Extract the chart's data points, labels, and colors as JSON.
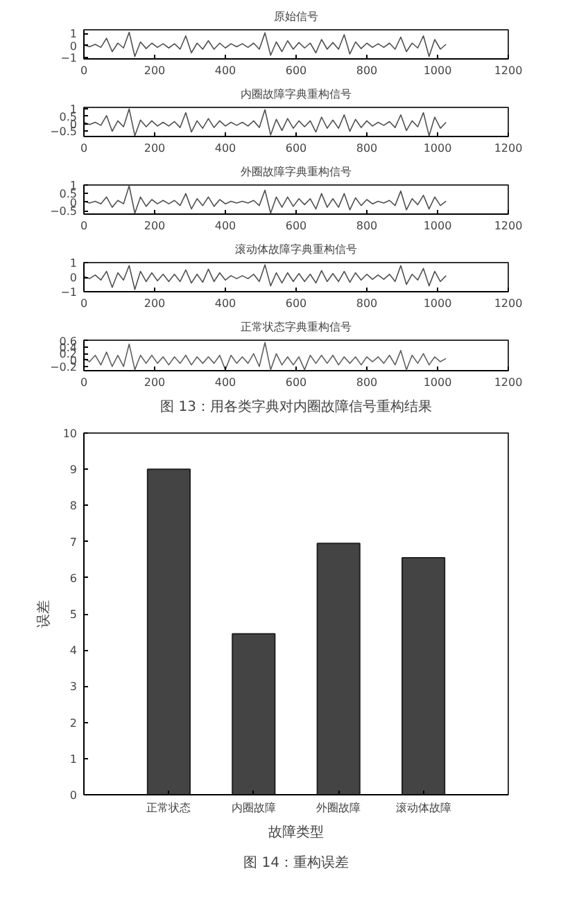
{
  "chart_data": [
    {
      "type": "line",
      "title": "原始信号",
      "xlim": [
        0,
        1200
      ],
      "xticks": [
        0,
        200,
        400,
        600,
        800,
        1000,
        1200
      ],
      "ylim": [
        -1.1,
        1.3
      ],
      "yticks": [
        -1,
        0,
        1
      ],
      "grid": false,
      "x": [
        0,
        16,
        32,
        48,
        64,
        80,
        96,
        112,
        128,
        144,
        160,
        176,
        192,
        208,
        224,
        240,
        256,
        272,
        288,
        304,
        320,
        336,
        352,
        368,
        384,
        400,
        416,
        432,
        448,
        464,
        480,
        496,
        512,
        528,
        544,
        560,
        576,
        592,
        608,
        624,
        640,
        656,
        672,
        688,
        704,
        720,
        736,
        752,
        768,
        784,
        800,
        816,
        832,
        848,
        864,
        880,
        896,
        912,
        928,
        944,
        960,
        976,
        992,
        1008,
        1024
      ],
      "series": [
        {
          "color": "#505050",
          "values": [
            0.05,
            -0.1,
            0.1,
            -0.15,
            0.6,
            -0.5,
            0.2,
            -0.2,
            1.1,
            -0.9,
            0.3,
            -0.25,
            0.2,
            -0.15,
            0.15,
            -0.2,
            0.15,
            -0.3,
            0.8,
            -0.6,
            0.2,
            -0.3,
            0.4,
            -0.3,
            0.2,
            -0.2,
            0.15,
            -0.1,
            0.15,
            -0.15,
            0.2,
            -0.3,
            1.05,
            -0.8,
            0.3,
            -0.5,
            0.4,
            -0.3,
            0.25,
            -0.2,
            0.2,
            -0.6,
            0.5,
            -0.3,
            0.25,
            -0.3,
            0.9,
            -0.7,
            0.3,
            -0.25,
            0.2,
            -0.15,
            0.15,
            -0.15,
            0.2,
            -0.3,
            0.7,
            -0.5,
            0.2,
            -0.2,
            0.8,
            -0.9,
            0.5,
            -0.3,
            0.1
          ]
        }
      ]
    },
    {
      "type": "line",
      "title": "内圈故障字典重构信号",
      "xlim": [
        0,
        1200
      ],
      "xticks": [
        0,
        200,
        400,
        600,
        800,
        1000,
        1200
      ],
      "ylim": [
        -0.85,
        1.1
      ],
      "yticks": [
        -0.5,
        0,
        0.5,
        1
      ],
      "grid": false,
      "x": [
        0,
        16,
        32,
        48,
        64,
        80,
        96,
        112,
        128,
        144,
        160,
        176,
        192,
        208,
        224,
        240,
        256,
        272,
        288,
        304,
        320,
        336,
        352,
        368,
        384,
        400,
        416,
        432,
        448,
        464,
        480,
        496,
        512,
        528,
        544,
        560,
        576,
        592,
        608,
        624,
        640,
        656,
        672,
        688,
        704,
        720,
        736,
        752,
        768,
        784,
        800,
        816,
        832,
        848,
        864,
        880,
        896,
        912,
        928,
        944,
        960,
        976,
        992,
        1008,
        1024
      ],
      "series": [
        {
          "color": "#505050",
          "values": [
            0.1,
            -0.05,
            0.1,
            -0.1,
            0.55,
            -0.5,
            0.2,
            -0.2,
            1.0,
            -0.8,
            0.25,
            -0.2,
            0.2,
            -0.15,
            0.1,
            -0.15,
            0.15,
            -0.25,
            0.75,
            -0.55,
            0.2,
            -0.3,
            0.35,
            -0.25,
            0.2,
            -0.15,
            0.1,
            -0.1,
            0.1,
            -0.15,
            0.2,
            -0.25,
            0.95,
            -0.75,
            0.3,
            -0.45,
            0.35,
            -0.3,
            0.2,
            -0.2,
            0.2,
            -0.55,
            0.45,
            -0.3,
            0.25,
            -0.3,
            0.6,
            -0.5,
            0.3,
            -0.25,
            0.2,
            -0.15,
            0.1,
            -0.1,
            0.15,
            -0.25,
            0.6,
            -0.45,
            0.2,
            -0.2,
            0.75,
            -0.8,
            0.45,
            -0.3,
            0.1
          ]
        }
      ]
    },
    {
      "type": "line",
      "title": "外圈故障字典重构信号",
      "xlim": [
        0,
        1200
      ],
      "xticks": [
        0,
        200,
        400,
        600,
        800,
        1000,
        1200
      ],
      "ylim": [
        -0.7,
        1.0
      ],
      "yticks": [
        -0.5,
        0,
        0.5,
        1
      ],
      "grid": false,
      "x": [
        0,
        16,
        32,
        48,
        64,
        80,
        96,
        112,
        128,
        144,
        160,
        176,
        192,
        208,
        224,
        240,
        256,
        272,
        288,
        304,
        320,
        336,
        352,
        368,
        384,
        400,
        416,
        432,
        448,
        464,
        480,
        496,
        512,
        528,
        544,
        560,
        576,
        592,
        608,
        624,
        640,
        656,
        672,
        688,
        704,
        720,
        736,
        752,
        768,
        784,
        800,
        816,
        832,
        848,
        864,
        880,
        896,
        912,
        928,
        944,
        960,
        976,
        992,
        1008,
        1024
      ],
      "series": [
        {
          "color": "#505050",
          "values": [
            0.05,
            -0.05,
            0.05,
            -0.1,
            0.3,
            -0.3,
            0.1,
            -0.1,
            0.95,
            -0.65,
            0.3,
            -0.25,
            0.15,
            -0.1,
            0.1,
            -0.1,
            0.1,
            -0.2,
            0.5,
            -0.4,
            0.2,
            -0.2,
            0.3,
            -0.25,
            0.15,
            -0.1,
            0.05,
            -0.05,
            0.05,
            -0.05,
            0.1,
            -0.2,
            0.7,
            -0.65,
            0.3,
            -0.3,
            0.3,
            -0.25,
            0.2,
            -0.15,
            0.2,
            -0.4,
            0.5,
            -0.3,
            0.2,
            -0.3,
            0.5,
            -0.45,
            0.25,
            -0.2,
            0.15,
            -0.1,
            0.05,
            -0.05,
            0.1,
            -0.2,
            0.65,
            -0.45,
            0.2,
            -0.15,
            0.4,
            -0.4,
            0.3,
            -0.2,
            0.05
          ]
        }
      ]
    },
    {
      "type": "line",
      "title": "滚动体故障字典重构信号",
      "xlim": [
        0,
        1200
      ],
      "xticks": [
        0,
        200,
        400,
        600,
        800,
        1000,
        1200
      ],
      "ylim": [
        -1,
        1
      ],
      "yticks": [
        -1,
        0,
        1
      ],
      "grid": false,
      "x": [
        0,
        16,
        32,
        48,
        64,
        80,
        96,
        112,
        128,
        144,
        160,
        176,
        192,
        208,
        224,
        240,
        256,
        272,
        288,
        304,
        320,
        336,
        352,
        368,
        384,
        400,
        416,
        432,
        448,
        464,
        480,
        496,
        512,
        528,
        544,
        560,
        576,
        592,
        608,
        624,
        640,
        656,
        672,
        688,
        704,
        720,
        736,
        752,
        768,
        784,
        800,
        816,
        832,
        848,
        864,
        880,
        896,
        912,
        928,
        944,
        960,
        976,
        992,
        1008,
        1024
      ],
      "series": [
        {
          "color": "#505050",
          "values": [
            0.05,
            -0.1,
            0.15,
            -0.2,
            0.4,
            -0.7,
            0.3,
            -0.2,
            0.8,
            -0.85,
            0.4,
            -0.3,
            0.3,
            -0.25,
            0.2,
            -0.3,
            0.2,
            -0.3,
            0.5,
            -0.4,
            0.2,
            -0.35,
            0.55,
            -0.3,
            0.3,
            -0.2,
            0.1,
            -0.1,
            0.1,
            -0.1,
            0.2,
            -0.3,
            0.85,
            -0.6,
            0.3,
            -0.4,
            0.3,
            -0.3,
            0.25,
            -0.3,
            0.2,
            -0.4,
            0.45,
            -0.3,
            0.25,
            -0.3,
            0.4,
            -0.35,
            0.3,
            -0.2,
            0.2,
            -0.15,
            0.15,
            -0.15,
            0.2,
            -0.3,
            0.8,
            -0.5,
            0.2,
            -0.2,
            0.6,
            -0.6,
            0.4,
            -0.3,
            0.1
          ]
        }
      ]
    },
    {
      "type": "line",
      "title": "正常状态字典重构信号",
      "xlim": [
        0,
        1200
      ],
      "xticks": [
        0,
        200,
        400,
        600,
        800,
        1000,
        1200
      ],
      "ylim": [
        -0.33,
        0.62
      ],
      "yticks": [
        -0.2,
        0,
        0.2,
        0.4,
        0.6
      ],
      "grid": false,
      "annotations": [
        "图 13：用各类字典对内圈故障信号重构结果"
      ],
      "x": [
        0,
        16,
        32,
        48,
        64,
        80,
        96,
        112,
        128,
        144,
        160,
        176,
        192,
        208,
        224,
        240,
        256,
        272,
        288,
        304,
        320,
        336,
        352,
        368,
        384,
        400,
        416,
        432,
        448,
        464,
        480,
        496,
        512,
        528,
        544,
        560,
        576,
        592,
        608,
        624,
        640,
        656,
        672,
        688,
        704,
        720,
        736,
        752,
        768,
        784,
        800,
        816,
        832,
        848,
        864,
        880,
        896,
        912,
        928,
        944,
        960,
        976,
        992,
        1008,
        1024
      ],
      "series": [
        {
          "color": "#606060",
          "values": [
            0.05,
            -0.05,
            0.15,
            -0.15,
            0.25,
            -0.2,
            0.15,
            -0.2,
            0.5,
            -0.3,
            0.15,
            -0.1,
            0.15,
            -0.1,
            0.1,
            -0.15,
            0.1,
            -0.1,
            0.15,
            -0.15,
            0.1,
            -0.1,
            0.1,
            -0.1,
            0.15,
            -0.3,
            0.15,
            -0.1,
            0.1,
            -0.1,
            0.2,
            -0.2,
            0.55,
            -0.3,
            0.2,
            -0.15,
            0.1,
            -0.15,
            0.1,
            -0.3,
            0.15,
            -0.1,
            0.15,
            -0.1,
            0.15,
            -0.15,
            0.1,
            -0.1,
            0.1,
            -0.15,
            0.1,
            -0.05,
            0.1,
            -0.1,
            0.15,
            -0.15,
            0.3,
            -0.3,
            0.15,
            -0.1,
            0.2,
            -0.15,
            0.1,
            -0.05,
            0.05
          ]
        }
      ]
    },
    {
      "type": "bar",
      "categories": [
        "正常状态",
        "内圈故障",
        "外圈故障",
        "滚动体故障"
      ],
      "values": [
        9.0,
        4.45,
        6.95,
        6.55
      ],
      "color": "#444444",
      "xlabel": "故障类型",
      "ylabel": "误差",
      "ylim": [
        0,
        10
      ],
      "yticks": [
        0,
        1,
        2,
        3,
        4,
        5,
        6,
        7,
        8,
        9,
        10
      ],
      "grid": false,
      "annotations": [
        "图 14：重构误差"
      ]
    }
  ]
}
